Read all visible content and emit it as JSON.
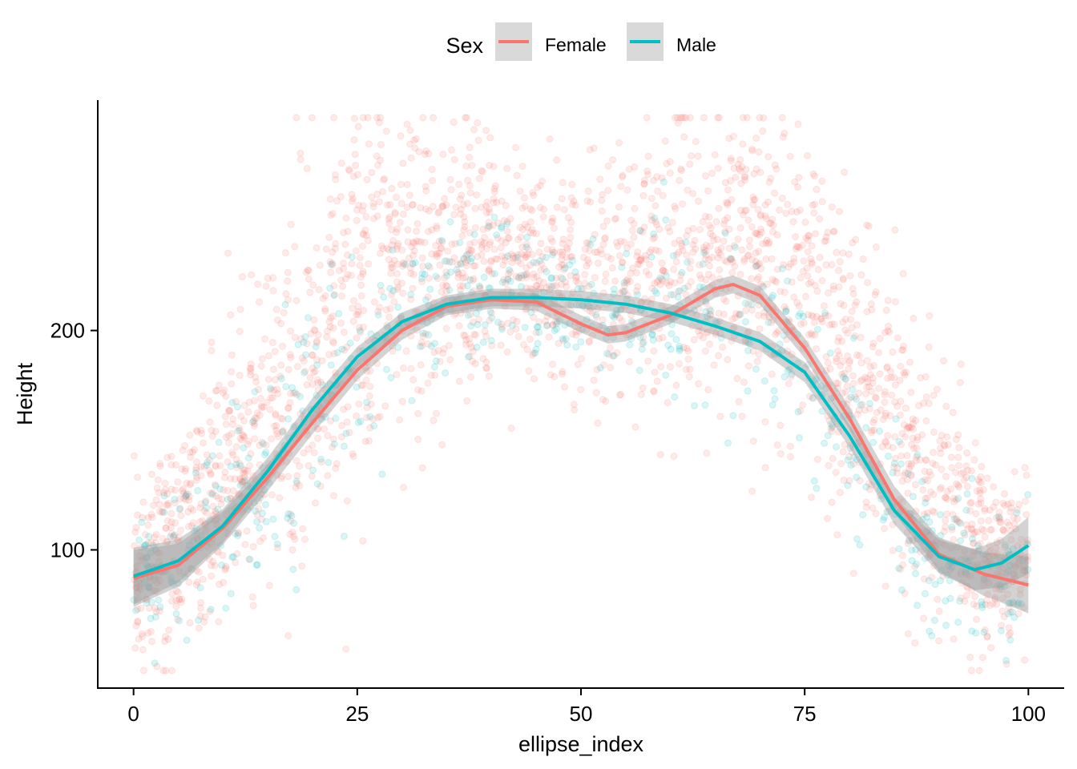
{
  "chart_data": {
    "type": "scatter",
    "title": "",
    "xlabel": "ellipse_index",
    "ylabel": "Height",
    "xlim": [
      -4,
      104
    ],
    "ylim": [
      37,
      305
    ],
    "x_ticks": [
      0,
      25,
      50,
      75,
      100
    ],
    "x_tick_labels": [
      "0",
      "25",
      "50",
      "75",
      "100"
    ],
    "y_ticks": [
      100,
      200
    ],
    "y_tick_labels": [
      "100",
      "200"
    ],
    "grid": false,
    "legend": {
      "title": "Sex",
      "position": "top",
      "entries": [
        {
          "label": "Female",
          "color": "#F8766D"
        },
        {
          "label": "Male",
          "color": "#00BFC4"
        }
      ]
    },
    "point_alpha": 0.15,
    "series": [
      {
        "name": "Female",
        "color": "#F8766D",
        "kind": "scatter+smooth",
        "point_density_profile": {
          "x": [
            0,
            5,
            10,
            15,
            20,
            25,
            30,
            35,
            40,
            45,
            50,
            55,
            60,
            65,
            70,
            75,
            80,
            85,
            90,
            95,
            100
          ],
          "y_low": [
            55,
            60,
            75,
            85,
            105,
            130,
            150,
            170,
            185,
            185,
            180,
            170,
            175,
            180,
            175,
            150,
            120,
            95,
            70,
            60,
            55
          ],
          "y_high": [
            125,
            150,
            190,
            230,
            265,
            290,
            295,
            290,
            280,
            270,
            265,
            270,
            285,
            295,
            295,
            280,
            250,
            215,
            175,
            140,
            130
          ]
        },
        "smooth": {
          "x": [
            0,
            5,
            10,
            15,
            20,
            25,
            30,
            35,
            40,
            45,
            50,
            53,
            55,
            60,
            65,
            67,
            70,
            75,
            80,
            85,
            90,
            95,
            100
          ],
          "y": [
            87,
            93,
            110,
            133,
            158,
            182,
            200,
            211,
            214,
            213,
            203,
            198,
            199,
            207,
            219,
            221,
            216,
            192,
            160,
            123,
            98,
            89,
            84
          ]
        }
      },
      {
        "name": "Male",
        "color": "#00BFC4",
        "kind": "scatter+smooth",
        "point_density_profile": {
          "x": [
            0,
            5,
            10,
            15,
            20,
            25,
            30,
            35,
            40,
            45,
            50,
            55,
            60,
            65,
            70,
            75,
            80,
            85,
            90,
            95,
            100
          ],
          "y_low": [
            55,
            55,
            65,
            85,
            110,
            140,
            165,
            185,
            195,
            190,
            185,
            180,
            180,
            175,
            165,
            145,
            110,
            85,
            65,
            55,
            55
          ],
          "y_high": [
            115,
            130,
            160,
            185,
            210,
            230,
            245,
            250,
            245,
            240,
            235,
            235,
            240,
            245,
            240,
            220,
            190,
            160,
            130,
            115,
            120
          ]
        },
        "smooth": {
          "x": [
            0,
            5,
            10,
            15,
            20,
            25,
            30,
            35,
            40,
            45,
            50,
            55,
            60,
            65,
            70,
            75,
            80,
            85,
            90,
            94,
            97,
            100
          ],
          "y": [
            88,
            95,
            111,
            136,
            164,
            188,
            204,
            212,
            215,
            215,
            214,
            212,
            208,
            202,
            195,
            181,
            152,
            118,
            97,
            91,
            94,
            102
          ]
        }
      }
    ]
  }
}
